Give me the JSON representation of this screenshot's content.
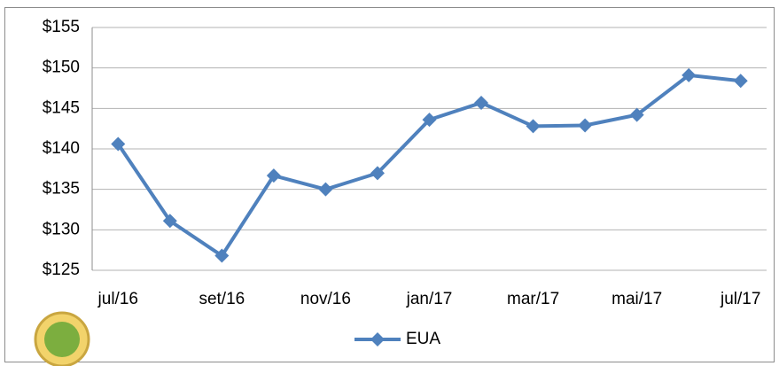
{
  "chart_data": {
    "type": "line",
    "categories": [
      "jul/16",
      null,
      "set/16",
      null,
      "nov/16",
      null,
      "jan/17",
      null,
      "mar/17",
      null,
      "mai/17",
      null,
      "jul/17"
    ],
    "series": [
      {
        "name": "EUA",
        "color": "#4f81bd",
        "values": [
          140.6,
          131.1,
          126.8,
          136.7,
          135.0,
          137.0,
          143.6,
          145.7,
          142.8,
          142.9,
          144.2,
          149.1,
          148.4
        ]
      }
    ],
    "ylim": [
      125,
      155
    ],
    "yticks": [
      {
        "value": 125,
        "label": "$125"
      },
      {
        "value": 130,
        "label": "$130"
      },
      {
        "value": 135,
        "label": "$135"
      },
      {
        "value": 140,
        "label": "$140"
      },
      {
        "value": 145,
        "label": "$145"
      },
      {
        "value": 150,
        "label": "$150"
      },
      {
        "value": 155,
        "label": "$155"
      }
    ],
    "grid": true,
    "legend": "bottom"
  }
}
